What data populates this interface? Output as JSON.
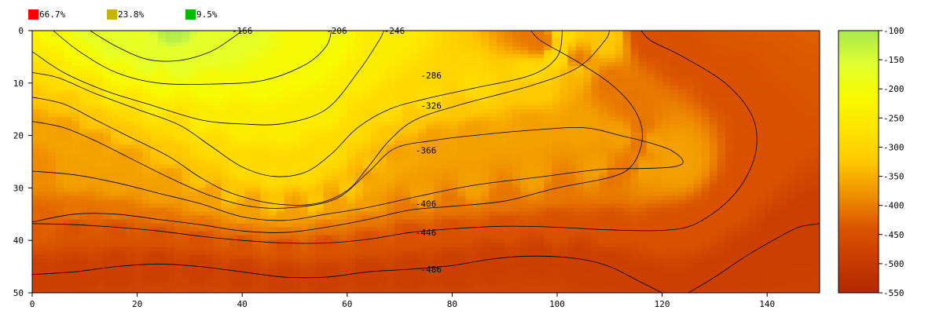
{
  "legend": [
    {
      "label": "66.7%",
      "color": "#ff0000"
    },
    {
      "label": "23.8%",
      "color": "#c8b400"
    },
    {
      "label": "9.5%",
      "color": "#00bb00"
    }
  ],
  "chart_data": {
    "type": "heatmap",
    "title": "",
    "xlabel": "",
    "ylabel": "",
    "xlim": [
      0,
      150
    ],
    "ylim": [
      0,
      50
    ],
    "y_inverted": true,
    "x_ticks": [
      0,
      20,
      40,
      60,
      80,
      100,
      120,
      140
    ],
    "y_ticks": [
      0,
      10,
      20,
      30,
      40,
      50
    ],
    "colorbar": {
      "range": [
        -550,
        -100
      ],
      "ticks": [
        -100,
        -150,
        -200,
        -250,
        -300,
        -350,
        -400,
        -450,
        -500,
        -550
      ],
      "colors": [
        "#b42800",
        "#c83c00",
        "#dc5500",
        "#f09000",
        "#ffc800",
        "#ffe400",
        "#f8fa00",
        "#e0ff30",
        "#a8e850"
      ]
    },
    "contour_levels": [
      -166,
      -206,
      -246,
      -286,
      -326,
      -366,
      -406,
      -446,
      -486
    ],
    "contour_labels": [
      {
        "text": "-166",
        "x": 40,
        "y": 0
      },
      {
        "text": "-206",
        "x": 58,
        "y": 0
      },
      {
        "text": "-246",
        "x": 69,
        "y": 0
      },
      {
        "text": "-286",
        "x": 76,
        "y": 8.5
      },
      {
        "text": "-326",
        "x": 76,
        "y": 14.3
      },
      {
        "text": "-366",
        "x": 75,
        "y": 22.8
      },
      {
        "text": "-406",
        "x": 75,
        "y": 33
      },
      {
        "text": "-446",
        "x": 75,
        "y": 38.5
      },
      {
        "text": "-486",
        "x": 76,
        "y": 45.5
      }
    ],
    "contours": [
      {
        "level": -166,
        "points": [
          [
            11,
            0
          ],
          [
            16,
            3
          ],
          [
            22,
            5.5
          ],
          [
            28,
            5.7
          ],
          [
            34,
            4
          ],
          [
            38,
            1.5
          ],
          [
            40,
            0
          ]
        ]
      },
      {
        "level": -206,
        "points": [
          [
            4,
            0
          ],
          [
            9,
            4
          ],
          [
            16,
            8
          ],
          [
            24,
            10
          ],
          [
            34,
            10.2
          ],
          [
            44,
            9.5
          ],
          [
            52,
            6.5
          ],
          [
            56,
            3
          ],
          [
            57,
            0
          ]
        ]
      },
      {
        "level": -246,
        "points": [
          [
            0,
            4
          ],
          [
            6,
            8
          ],
          [
            14,
            11.5
          ],
          [
            22,
            14
          ],
          [
            32,
            17
          ],
          [
            40,
            17.8
          ],
          [
            48,
            17.7
          ],
          [
            56,
            15
          ],
          [
            62,
            8
          ],
          [
            66,
            2
          ],
          [
            67,
            0
          ]
        ]
      },
      {
        "level": -286,
        "points": [
          [
            0,
            8
          ],
          [
            5,
            9
          ],
          [
            12,
            12
          ],
          [
            20,
            15
          ],
          [
            28,
            18
          ],
          [
            34,
            22
          ],
          [
            40,
            26
          ],
          [
            46,
            27.8
          ],
          [
            52,
            27
          ],
          [
            57,
            23.5
          ],
          [
            62,
            18.5
          ],
          [
            68,
            15
          ],
          [
            75,
            13
          ],
          [
            84,
            11
          ],
          [
            95,
            8.5
          ],
          [
            100,
            5
          ],
          [
            101,
            0
          ]
        ]
      },
      {
        "level": -326,
        "points": [
          [
            0,
            12.7
          ],
          [
            6,
            14
          ],
          [
            12,
            17
          ],
          [
            18,
            20
          ],
          [
            26,
            24
          ],
          [
            32,
            28
          ],
          [
            38,
            31
          ],
          [
            46,
            33
          ],
          [
            54,
            33
          ],
          [
            60,
            30.5
          ],
          [
            64,
            26
          ],
          [
            68,
            21
          ],
          [
            73,
            17
          ],
          [
            82,
            14
          ],
          [
            95,
            10.5
          ],
          [
            104,
            7
          ],
          [
            109,
            2
          ],
          [
            110,
            0
          ]
        ]
      },
      {
        "level": -366,
        "points": [
          [
            0,
            17.3
          ],
          [
            6,
            18.5
          ],
          [
            12,
            21
          ],
          [
            18,
            24
          ],
          [
            26,
            28
          ],
          [
            34,
            31.5
          ],
          [
            42,
            33.6
          ],
          [
            50,
            33.7
          ],
          [
            58,
            32
          ],
          [
            64,
            27
          ],
          [
            69,
            22.5
          ],
          [
            76,
            21
          ],
          [
            84,
            20
          ],
          [
            95,
            19
          ],
          [
            105,
            18.5
          ],
          [
            112,
            20
          ],
          [
            118,
            21.5
          ],
          [
            122,
            23
          ],
          [
            124,
            25
          ],
          [
            122,
            26
          ],
          [
            116,
            26.3
          ],
          [
            108,
            26.5
          ],
          [
            96,
            28
          ],
          [
            84,
            29.5
          ],
          [
            74,
            31.5
          ],
          [
            64,
            33.7
          ],
          [
            56,
            35
          ],
          [
            48,
            36.2
          ],
          [
            40,
            35.5
          ],
          [
            32,
            33
          ],
          [
            24,
            31
          ],
          [
            16,
            29
          ],
          [
            8,
            27.5
          ],
          [
            0,
            26.8
          ]
        ]
      },
      {
        "level": -406,
        "points": [
          [
            0,
            26.8
          ]
        ]
      },
      {
        "level": -406,
        "points": [
          [
            95,
            0
          ],
          [
            97,
            2
          ],
          [
            104,
            6
          ],
          [
            110,
            10
          ],
          [
            114,
            14
          ],
          [
            116,
            18
          ],
          [
            116,
            22
          ],
          [
            114,
            26
          ],
          [
            110,
            28
          ],
          [
            100,
            30
          ],
          [
            90,
            32.5
          ],
          [
            80,
            33.5
          ],
          [
            72,
            34.2
          ],
          [
            64,
            36
          ],
          [
            56,
            37.5
          ],
          [
            48,
            38.5
          ],
          [
            40,
            38.2
          ],
          [
            32,
            37
          ],
          [
            24,
            36
          ],
          [
            16,
            35
          ],
          [
            8,
            35
          ],
          [
            0,
            36.5
          ]
        ]
      },
      {
        "level": -446,
        "points": [
          [
            0,
            36.8
          ],
          [
            8,
            37
          ],
          [
            16,
            37.5
          ],
          [
            24,
            38.2
          ],
          [
            32,
            39.2
          ],
          [
            40,
            40
          ],
          [
            48,
            40.5
          ],
          [
            56,
            40.5
          ],
          [
            64,
            39.8
          ],
          [
            72,
            38.5
          ],
          [
            80,
            37.8
          ],
          [
            90,
            37.3
          ],
          [
            100,
            37.5
          ],
          [
            110,
            38
          ],
          [
            120,
            38.1
          ],
          [
            126,
            37
          ],
          [
            132,
            33
          ],
          [
            136,
            28
          ],
          [
            138,
            22
          ],
          [
            137,
            16
          ],
          [
            132,
            10
          ],
          [
            124,
            5
          ],
          [
            118,
            2
          ],
          [
            116,
            0
          ]
        ]
      },
      {
        "level": -486,
        "points": [
          [
            0,
            46.5
          ],
          [
            8,
            46
          ],
          [
            16,
            45
          ],
          [
            24,
            44.5
          ],
          [
            32,
            45
          ],
          [
            40,
            46
          ],
          [
            48,
            47
          ],
          [
            56,
            47
          ],
          [
            64,
            46
          ],
          [
            72,
            45.5
          ],
          [
            80,
            44.8
          ],
          [
            88,
            43.5
          ],
          [
            96,
            43
          ],
          [
            104,
            43.5
          ],
          [
            110,
            45
          ],
          [
            116,
            48
          ],
          [
            120,
            50
          ]
        ]
      },
      {
        "level": -486,
        "points": [
          [
            125,
            50
          ],
          [
            130,
            47
          ],
          [
            136,
            43
          ],
          [
            142,
            39.5
          ],
          [
            146,
            37.5
          ],
          [
            150,
            36.8
          ]
        ]
      }
    ],
    "field_peak": {
      "x": 27,
      "y": 0,
      "value": -110
    },
    "background_value": -440
  }
}
